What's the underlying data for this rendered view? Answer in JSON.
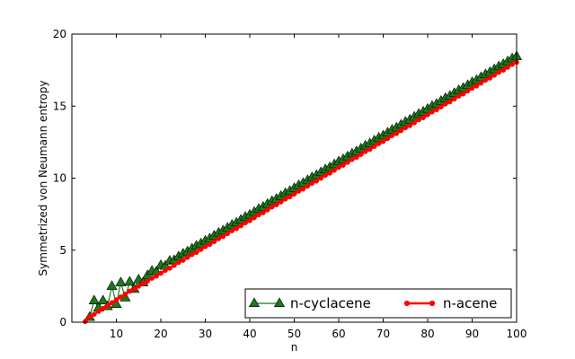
{
  "chart_data": {
    "type": "line",
    "xlabel": "n",
    "ylabel": "Symmetrized von Neumann entropy",
    "xlim": [
      0,
      100
    ],
    "ylim": [
      0,
      20
    ],
    "xticks": [
      10,
      20,
      30,
      40,
      50,
      60,
      70,
      80,
      90,
      100
    ],
    "yticks": [
      0,
      5,
      10,
      15,
      20
    ],
    "grid": false,
    "legend_position": "bottom-right",
    "series": [
      {
        "name": "n-cyclacene",
        "color": "#1a7a1a",
        "marker": "triangle",
        "x": [
          4,
          5,
          6,
          7,
          8,
          9,
          10,
          11,
          12,
          13,
          14,
          15,
          16,
          17,
          18,
          19,
          20,
          21,
          22,
          23,
          24,
          25,
          26,
          27,
          28,
          29,
          30,
          31,
          32,
          33,
          34,
          35,
          36,
          37,
          38,
          39,
          40,
          41,
          42,
          43,
          44,
          45,
          46,
          47,
          48,
          49,
          50,
          51,
          52,
          53,
          54,
          55,
          56,
          57,
          58,
          59,
          60,
          61,
          62,
          63,
          64,
          65,
          66,
          67,
          68,
          69,
          70,
          71,
          72,
          73,
          74,
          75,
          76,
          77,
          78,
          79,
          80,
          81,
          82,
          83,
          84,
          85,
          86,
          87,
          88,
          89,
          90,
          91,
          92,
          93,
          94,
          95,
          96,
          97,
          98,
          99,
          100
        ],
        "y": [
          0.35,
          1.5,
          1.0,
          1.5,
          1.1,
          2.5,
          1.25,
          2.75,
          1.7,
          2.8,
          2.3,
          2.95,
          2.75,
          3.25,
          3.55,
          3.5,
          3.95,
          3.9,
          4.25,
          4.3,
          4.55,
          4.75,
          4.9,
          5.1,
          5.3,
          5.45,
          5.65,
          5.8,
          6.0,
          6.2,
          6.35,
          6.55,
          6.75,
          6.9,
          7.1,
          7.3,
          7.45,
          7.65,
          7.85,
          8.0,
          8.2,
          8.4,
          8.55,
          8.75,
          8.95,
          9.1,
          9.3,
          9.5,
          9.65,
          9.85,
          10.05,
          10.2,
          10.4,
          10.6,
          10.75,
          10.95,
          11.15,
          11.3,
          11.5,
          11.7,
          11.85,
          12.05,
          12.25,
          12.4,
          12.6,
          12.8,
          12.95,
          13.15,
          13.35,
          13.5,
          13.7,
          13.9,
          14.05,
          14.25,
          14.45,
          14.6,
          14.8,
          15.0,
          15.15,
          15.35,
          15.55,
          15.7,
          15.9,
          16.1,
          16.25,
          16.45,
          16.65,
          16.8,
          17.0,
          17.2,
          17.35,
          17.55,
          17.75,
          17.9,
          18.1,
          18.3,
          18.45
        ]
      },
      {
        "name": "n-acene",
        "color": "#ff0000",
        "marker": "circle",
        "x": [
          3,
          4,
          5,
          6,
          7,
          8,
          9,
          10,
          11,
          12,
          13,
          14,
          15,
          16,
          17,
          18,
          19,
          20,
          21,
          22,
          23,
          24,
          25,
          26,
          27,
          28,
          29,
          30,
          31,
          32,
          33,
          34,
          35,
          36,
          37,
          38,
          39,
          40,
          41,
          42,
          43,
          44,
          45,
          46,
          47,
          48,
          49,
          50,
          51,
          52,
          53,
          54,
          55,
          56,
          57,
          58,
          59,
          60,
          61,
          62,
          63,
          64,
          65,
          66,
          67,
          68,
          69,
          70,
          71,
          72,
          73,
          74,
          75,
          76,
          77,
          78,
          79,
          80,
          81,
          82,
          83,
          84,
          85,
          86,
          87,
          88,
          89,
          90,
          91,
          92,
          93,
          94,
          95,
          96,
          97,
          98,
          99,
          100
        ],
        "y": [
          0.05,
          0.4,
          0.55,
          0.75,
          0.95,
          1.15,
          1.35,
          1.55,
          1.75,
          1.95,
          2.15,
          2.3,
          2.5,
          2.7,
          2.85,
          3.05,
          3.2,
          3.4,
          3.6,
          3.75,
          3.95,
          4.15,
          4.3,
          4.5,
          4.7,
          4.85,
          5.05,
          5.25,
          5.4,
          5.6,
          5.8,
          5.95,
          6.15,
          6.35,
          6.5,
          6.7,
          6.9,
          7.05,
          7.25,
          7.45,
          7.6,
          7.8,
          8.0,
          8.15,
          8.35,
          8.55,
          8.7,
          8.9,
          9.1,
          9.25,
          9.45,
          9.65,
          9.8,
          10.0,
          10.2,
          10.35,
          10.55,
          10.75,
          10.9,
          11.1,
          11.3,
          11.45,
          11.65,
          11.85,
          12.0,
          12.2,
          12.4,
          12.55,
          12.75,
          12.95,
          13.1,
          13.3,
          13.5,
          13.65,
          13.85,
          14.05,
          14.2,
          14.4,
          14.6,
          14.75,
          14.95,
          15.15,
          15.3,
          15.5,
          15.7,
          15.85,
          16.05,
          16.25,
          16.4,
          16.6,
          16.8,
          16.95,
          17.15,
          17.35,
          17.5,
          17.7,
          17.9,
          18.05
        ]
      }
    ]
  }
}
